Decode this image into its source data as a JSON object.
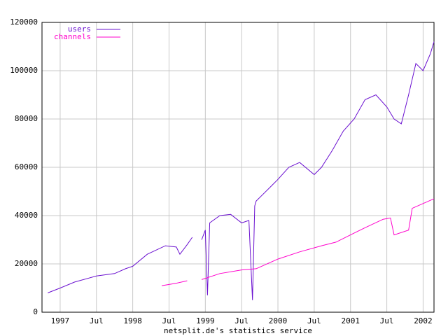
{
  "chart_data": {
    "type": "line",
    "xlabel": "netsplit.de's statistics service",
    "xlim": [
      1996.75,
      2002.15
    ],
    "ylim": [
      0,
      120000
    ],
    "xticks": [
      {
        "value": 1997,
        "label": "1997"
      },
      {
        "value": 1997.5,
        "label": "Jul"
      },
      {
        "value": 1998,
        "label": "1998"
      },
      {
        "value": 1998.5,
        "label": "Jul"
      },
      {
        "value": 1999,
        "label": "1999"
      },
      {
        "value": 1999.5,
        "label": "Jul"
      },
      {
        "value": 2000,
        "label": "2000"
      },
      {
        "value": 2000.5,
        "label": "Jul"
      },
      {
        "value": 2001,
        "label": "2001"
      },
      {
        "value": 2001.5,
        "label": "Jul"
      },
      {
        "value": 2002,
        "label": "2002"
      }
    ],
    "yticks": [
      0,
      20000,
      40000,
      60000,
      80000,
      100000,
      120000
    ],
    "grid": true,
    "legend": "top-left",
    "series": [
      {
        "name": "users",
        "color": "#6a10d0",
        "x": [
          1996.83,
          1997.0,
          1997.2,
          1997.5,
          1997.75,
          1997.9,
          1998.0,
          1998.2,
          1998.45,
          1998.6,
          1998.65,
          1998.75,
          1998.82,
          1998.88,
          1998.95,
          1999.0,
          1999.03,
          1999.06,
          1999.2,
          1999.35,
          1999.5,
          1999.6,
          1999.65,
          1999.68,
          1999.7,
          1999.9,
          2000.0,
          2000.15,
          2000.3,
          2000.5,
          2000.6,
          2000.75,
          2000.9,
          2001.05,
          2001.2,
          2001.35,
          2001.5,
          2001.6,
          2001.7,
          2001.8,
          2001.9,
          2002.0,
          2002.1,
          2002.15
        ],
        "values": [
          8000,
          10000,
          12500,
          15000,
          16000,
          18000,
          19000,
          24000,
          27500,
          27000,
          24000,
          28000,
          31000,
          null,
          30000,
          34000,
          7000,
          37000,
          40000,
          40500,
          37000,
          38000,
          5000,
          44000,
          46000,
          52000,
          55000,
          60000,
          62000,
          57000,
          60000,
          67000,
          75000,
          80000,
          88000,
          90000,
          85000,
          80000,
          78000,
          90000,
          103000,
          100000,
          107000,
          112000
        ]
      },
      {
        "name": "channels",
        "color": "#ff00cc",
        "x": [
          1998.4,
          1998.6,
          1998.75,
          1998.85,
          1998.95,
          1999.2,
          1999.5,
          1999.7,
          2000.0,
          2000.3,
          2000.6,
          2000.8,
          2001.0,
          2001.2,
          2001.45,
          2001.55,
          2001.6,
          2001.8,
          2001.85,
          2002.15
        ],
        "values": [
          11000,
          12000,
          13000,
          null,
          13500,
          16000,
          17500,
          18000,
          22000,
          25000,
          27500,
          29000,
          32000,
          35000,
          38500,
          39000,
          32000,
          34000,
          43000,
          47000
        ]
      }
    ]
  }
}
